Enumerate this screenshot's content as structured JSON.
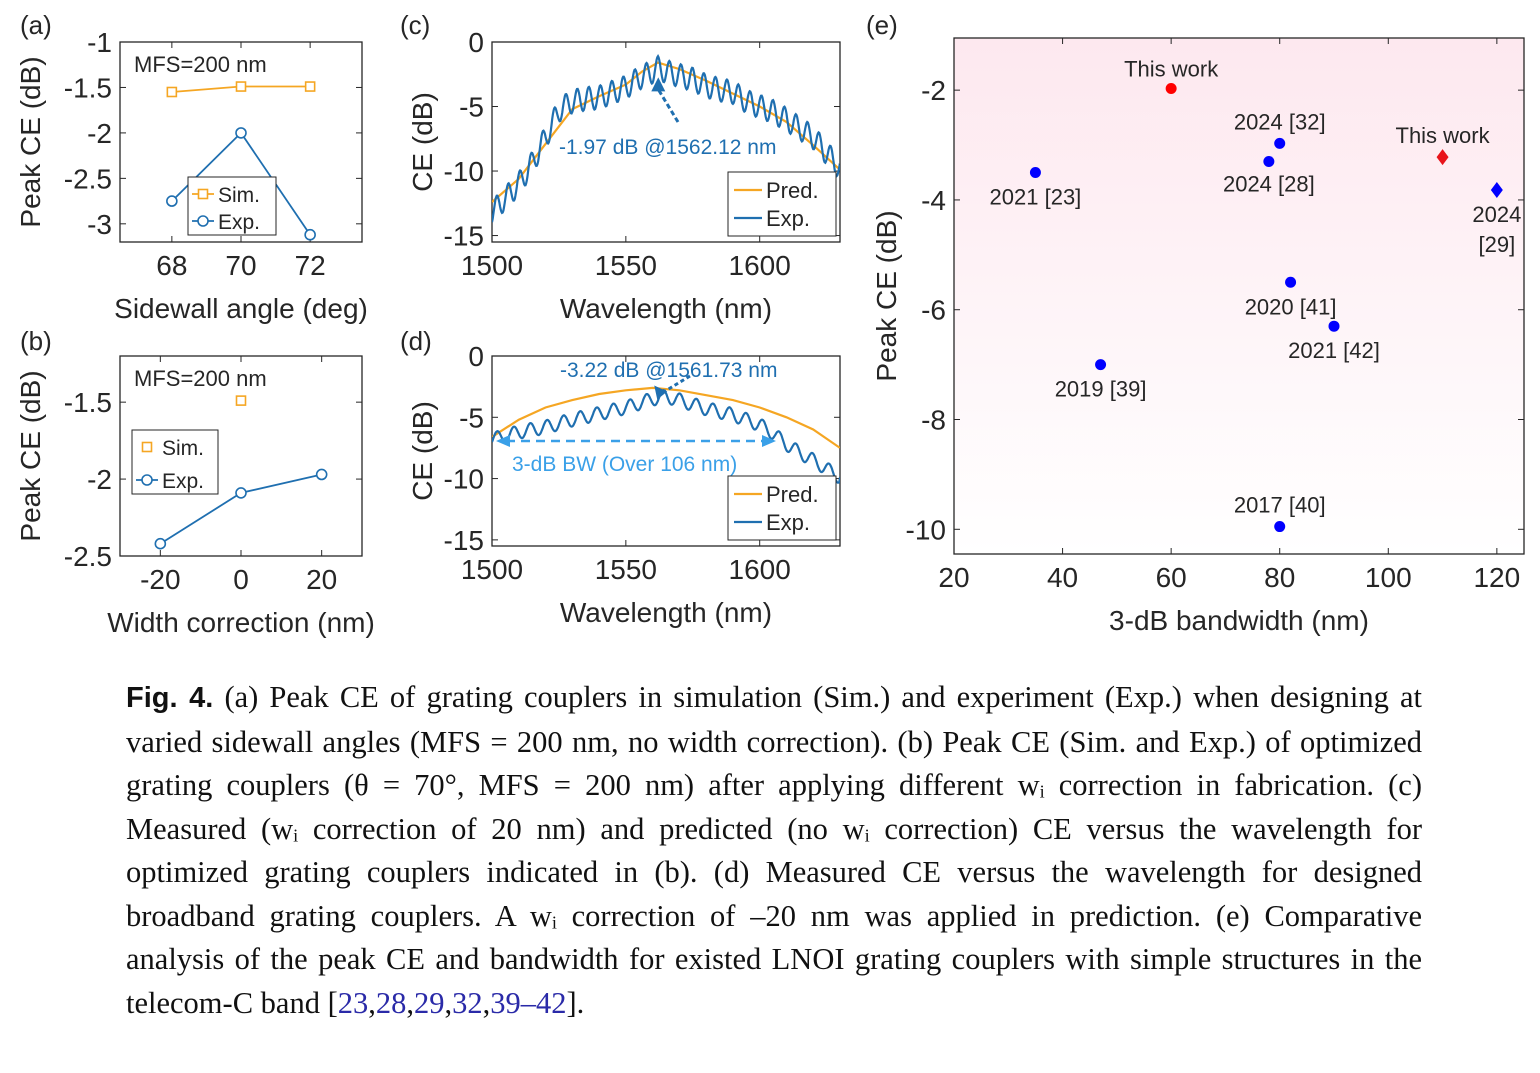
{
  "chart_data": [
    {
      "id": "a",
      "panel_label": "(a)",
      "type": "line",
      "annotation": "MFS=200 nm",
      "xlabel": "Sidewall angle (deg)",
      "ylabel": "Peak CE (dB)",
      "xlim": [
        66.5,
        73.5
      ],
      "ylim": [
        -3.2,
        -1
      ],
      "xticks": [
        68,
        70,
        72
      ],
      "yticks": [
        -1,
        -1.5,
        -2,
        -2.5,
        -3
      ],
      "xticklabels": [
        "68",
        "70",
        "72"
      ],
      "yticklabels": [
        "-1",
        "-1.5",
        "-2",
        "-2.5",
        "-3"
      ],
      "legend_position": "bottom-left",
      "series": [
        {
          "name": "Sim.",
          "color": "#f5a623",
          "marker": "square",
          "x": [
            68,
            70,
            72
          ],
          "y": [
            -1.55,
            -1.49,
            -1.49
          ]
        },
        {
          "name": "Exp.",
          "color": "#1f6fb0",
          "marker": "circle",
          "x": [
            68,
            70,
            72
          ],
          "y": [
            -2.75,
            -2.0,
            -3.12
          ]
        }
      ]
    },
    {
      "id": "b",
      "panel_label": "(b)",
      "type": "line",
      "annotation": "MFS=200 nm",
      "xlabel": "Width correction (nm)",
      "ylabel": "Peak CE (dB)",
      "xlim": [
        -30,
        30
      ],
      "ylim": [
        -2.5,
        -1.2
      ],
      "xticks": [
        -20,
        0,
        20
      ],
      "yticks": [
        -1.5,
        -2,
        -2.5
      ],
      "xticklabels": [
        "-20",
        "0",
        "20"
      ],
      "yticklabels": [
        "-1.5",
        "-2",
        "-2.5"
      ],
      "legend_position": "left",
      "series": [
        {
          "name": "Sim.",
          "color": "#f5a623",
          "marker": "square",
          "x": [
            0
          ],
          "y": [
            -1.49
          ]
        },
        {
          "name": "Exp.",
          "color": "#1f6fb0",
          "marker": "circle",
          "x": [
            -20,
            0,
            20
          ],
          "y": [
            -2.42,
            -2.09,
            -1.97
          ]
        }
      ]
    },
    {
      "id": "c",
      "panel_label": "(c)",
      "type": "line",
      "xlabel": "Wavelength (nm)",
      "ylabel": "CE (dB)",
      "xlim": [
        1500,
        1630
      ],
      "ylim": [
        -15.5,
        0
      ],
      "xticks": [
        1500,
        1550,
        1600
      ],
      "yticks": [
        0,
        -5,
        -10,
        -15
      ],
      "xticklabels": [
        "1500",
        "1550",
        "1600"
      ],
      "yticklabels": [
        "0",
        "-5",
        "-10",
        "-15"
      ],
      "annotation": "-1.97 dB @1562.12 nm",
      "legend_position": "bottom-right",
      "series": [
        {
          "name": "Pred.",
          "color": "#f5a623",
          "x": [
            1500,
            1510,
            1520,
            1530,
            1540,
            1550,
            1556,
            1562,
            1570,
            1580,
            1590,
            1600,
            1610,
            1620,
            1630
          ],
          "y": [
            -12.4,
            -10.6,
            -7.9,
            -5.2,
            -4.2,
            -3.3,
            -2.3,
            -1.6,
            -2.1,
            -3.0,
            -4.0,
            -5.0,
            -6.2,
            -8.0,
            -9.9
          ]
        },
        {
          "name": "Exp.",
          "color": "#1f6fb0",
          "x": [
            1500,
            1505,
            1510,
            1515,
            1520,
            1525,
            1530,
            1535,
            1540,
            1545,
            1550,
            1555,
            1560,
            1562,
            1565,
            1570,
            1575,
            1580,
            1585,
            1590,
            1595,
            1600,
            1605,
            1610,
            1615,
            1620,
            1625,
            1630
          ],
          "y": [
            -13.2,
            -12.1,
            -11.0,
            -9.4,
            -7.4,
            -5.3,
            -4.6,
            -4.4,
            -4.3,
            -3.9,
            -3.5,
            -2.8,
            -2.3,
            -2.0,
            -2.3,
            -2.6,
            -2.9,
            -3.4,
            -3.7,
            -3.9,
            -4.6,
            -5.0,
            -5.4,
            -6.0,
            -6.7,
            -7.4,
            -8.6,
            -9.8
          ]
        }
      ]
    },
    {
      "id": "d",
      "panel_label": "(d)",
      "type": "line",
      "xlabel": "Wavelength (nm)",
      "ylabel": "CE (dB)",
      "xlim": [
        1500,
        1630
      ],
      "ylim": [
        -15.5,
        0
      ],
      "xticks": [
        1500,
        1550,
        1600
      ],
      "yticks": [
        0,
        -5,
        -10,
        -15
      ],
      "xticklabels": [
        "1500",
        "1550",
        "1600"
      ],
      "yticklabels": [
        "0",
        "-5",
        "-10",
        "-15"
      ],
      "annotation": "-3.22 dB @1561.73 nm",
      "bandwidth_label": "3-dB BW (Over 106 nm)",
      "legend_position": "bottom-right",
      "series": [
        {
          "name": "Pred.",
          "color": "#f5a623",
          "x": [
            1500,
            1510,
            1520,
            1530,
            1540,
            1550,
            1560,
            1570,
            1580,
            1590,
            1600,
            1610,
            1620,
            1630
          ],
          "y": [
            -6.6,
            -5.2,
            -4.2,
            -3.6,
            -3.1,
            -2.8,
            -2.6,
            -2.8,
            -3.2,
            -3.6,
            -4.2,
            -5.0,
            -6.0,
            -7.5
          ]
        },
        {
          "name": "Exp.",
          "color": "#1f6fb0",
          "x": [
            1500,
            1510,
            1520,
            1530,
            1540,
            1550,
            1560,
            1565,
            1570,
            1580,
            1590,
            1600,
            1605,
            1610,
            1615,
            1620,
            1625,
            1630
          ],
          "y": [
            -6.8,
            -6.2,
            -5.8,
            -5.2,
            -4.7,
            -4.2,
            -3.5,
            -3.3,
            -3.6,
            -4.3,
            -4.8,
            -5.6,
            -6.3,
            -7.2,
            -7.9,
            -8.5,
            -9.2,
            -9.9
          ]
        }
      ]
    },
    {
      "id": "e",
      "panel_label": "(e)",
      "type": "scatter",
      "xlabel": "3-dB bandwidth (nm)",
      "ylabel": "Peak CE (dB)",
      "xlim": [
        20,
        125
      ],
      "ylim": [
        -10.45,
        -1.05
      ],
      "xticks": [
        20,
        40,
        60,
        80,
        100,
        120
      ],
      "yticks": [
        -2,
        -4,
        -6,
        -8,
        -10
      ],
      "xticklabels": [
        "20",
        "40",
        "60",
        "80",
        "100",
        "120"
      ],
      "yticklabels": [
        "-2",
        "-4",
        "-6",
        "-8",
        "-10"
      ],
      "points": [
        {
          "label": "This work",
          "x": 60,
          "y": -1.97,
          "color": "#ff0000",
          "marker": "circle"
        },
        {
          "label": "This work",
          "x": 110,
          "y": -3.22,
          "color": "#e8141b",
          "marker": "diamond"
        },
        {
          "label": "2024 [32]",
          "x": 80,
          "y": -2.97,
          "color": "#0000ff",
          "marker": "circle"
        },
        {
          "label": "2024 [28]",
          "x": 78,
          "y": -3.3,
          "color": "#0000ff",
          "marker": "circle"
        },
        {
          "label": "2021 [23]",
          "x": 35,
          "y": -3.5,
          "color": "#0000ff",
          "marker": "circle"
        },
        {
          "label": "2024 [29]",
          "x": 120,
          "y": -3.82,
          "color": "#0000ff",
          "marker": "diamond"
        },
        {
          "label": "2020 [41]",
          "x": 82,
          "y": -5.5,
          "color": "#0000ff",
          "marker": "circle"
        },
        {
          "label": "2021 [42]",
          "x": 90,
          "y": -6.3,
          "color": "#0000ff",
          "marker": "circle"
        },
        {
          "label": "2019 [39]",
          "x": 47,
          "y": -7.0,
          "color": "#0000ff",
          "marker": "circle"
        },
        {
          "label": "2017 [40]",
          "x": 80,
          "y": -9.95,
          "color": "#0000ff",
          "marker": "circle"
        }
      ]
    }
  ],
  "caption": {
    "fig_label": "Fig. 4.",
    "text_1": "(a) Peak CE of grating couplers in simulation (Sim.) and experiment (Exp.) when designing at varied sidewall angles (MFS = 200 nm, no width correction). (b) Peak CE (Sim. and Exp.) of optimized grating couplers (θ = 70°, MFS = 200 nm) after applying different wᵢ correction in fabrication. (c) Measured (wᵢ correction of 20 nm) and predicted (no wᵢ correction) CE versus the wavelength for optimized grating couplers indicated in (b). (d) Measured CE versus the wavelength for designed broadband grating couplers. A wᵢ correction of –20 nm was applied in prediction. (e) Comparative analysis of the peak CE and bandwidth for existed LNOI grating couplers with simple structures in the telecom-C band [",
    "refs": [
      "23",
      "28",
      "29",
      "32",
      "39–42"
    ],
    "text_2": "]."
  }
}
